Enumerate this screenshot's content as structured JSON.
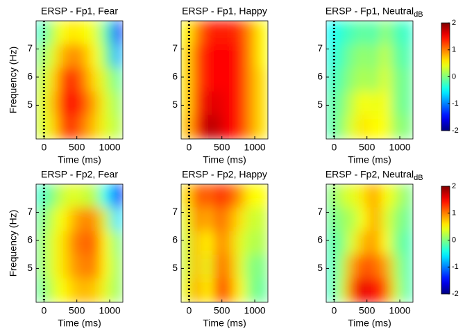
{
  "chart_data": [
    {
      "type": "heatmap",
      "title": "ERSP - Fp1, Fear",
      "xlabel": "Time (ms)",
      "ylabel": "Frequency (Hz)",
      "xlim": [
        -120,
        1200
      ],
      "ylim": [
        3.8,
        8
      ],
      "xticks": [
        0,
        500,
        1000
      ],
      "yticks": [
        5,
        6,
        7
      ],
      "event_line": 0,
      "x": [
        -40,
        125,
        290,
        455,
        620,
        785,
        950,
        1115
      ],
      "y": [
        7.58,
        6.74,
        5.9,
        5.06,
        4.22
      ],
      "z": [
        [
          -0.3,
          0.2,
          0.5,
          0.6,
          0.5,
          0.4,
          -0.2,
          -1.3
        ],
        [
          0,
          0.4,
          0.8,
          1.0,
          0.8,
          0.5,
          0,
          -0.8
        ],
        [
          0.2,
          0.6,
          1.2,
          1.4,
          1.0,
          0.6,
          0.3,
          -0.1
        ],
        [
          0.3,
          0.7,
          1.4,
          1.5,
          1.2,
          0.8,
          0.4,
          0.1
        ],
        [
          0.3,
          0.6,
          1.2,
          1.3,
          1.0,
          0.7,
          0.4,
          0.2
        ]
      ]
    },
    {
      "type": "heatmap",
      "title": "ERSP - Fp1, Happy",
      "xlabel": "Time (ms)",
      "xlim": [
        -120,
        1200
      ],
      "ylim": [
        3.8,
        8
      ],
      "xticks": [
        0,
        500,
        1000
      ],
      "yticks": [
        5,
        6,
        7
      ],
      "event_line": 0,
      "x": [
        -40,
        125,
        290,
        455,
        620,
        785,
        950,
        1115
      ],
      "y": [
        7.58,
        6.74,
        5.9,
        5.06,
        4.22
      ],
      "z": [
        [
          0.5,
          1.0,
          1.4,
          1.4,
          1.4,
          1.3,
          0.9,
          0.5
        ],
        [
          0.6,
          1.2,
          1.5,
          1.5,
          1.5,
          1.4,
          0.9,
          0.5
        ],
        [
          0.6,
          1.2,
          1.5,
          1.5,
          1.5,
          1.4,
          0.9,
          0.6
        ],
        [
          0.6,
          1.3,
          1.6,
          1.6,
          1.5,
          1.4,
          0.9,
          0.6
        ],
        [
          0.7,
          1.4,
          1.8,
          1.7,
          1.5,
          1.4,
          0.9,
          0.6
        ]
      ]
    },
    {
      "type": "heatmap",
      "title": "ERSP - Fp1, Neutral",
      "xlabel": "Time (ms)",
      "xlim": [
        -120,
        1200
      ],
      "ylim": [
        3.8,
        8
      ],
      "xticks": [
        0,
        500,
        1000
      ],
      "yticks": [
        5,
        6,
        7
      ],
      "event_line": 0,
      "x": [
        -40,
        125,
        290,
        455,
        620,
        785,
        950,
        1115
      ],
      "y": [
        7.58,
        6.74,
        5.9,
        5.06,
        4.22
      ],
      "z": [
        [
          -0.5,
          -0.3,
          -0.2,
          -0.1,
          -0.2,
          0.1,
          -0.2,
          -0.3
        ],
        [
          -0.4,
          -0.2,
          0,
          0.1,
          0,
          0.3,
          -0.1,
          -0.2
        ],
        [
          -0.3,
          -0.1,
          0.1,
          0.2,
          0.1,
          0.4,
          0,
          -0.1
        ],
        [
          -0.2,
          0,
          0.3,
          0.5,
          0.4,
          0.5,
          0,
          -0.1
        ],
        [
          -0.2,
          0.1,
          0.4,
          0.6,
          0.5,
          0.5,
          0.1,
          0
        ]
      ],
      "colorbar": {
        "label": "dB",
        "lim": [
          -2,
          2
        ],
        "ticks": [
          -2,
          -1,
          0,
          1,
          2
        ]
      }
    },
    {
      "type": "heatmap",
      "title": "ERSP - Fp2, Fear",
      "xlabel": "Time (ms)",
      "ylabel": "Frequency (Hz)",
      "xlim": [
        -120,
        1200
      ],
      "ylim": [
        3.8,
        8
      ],
      "xticks": [
        0,
        500,
        1000
      ],
      "yticks": [
        5,
        6,
        7
      ],
      "event_line": 0,
      "x": [
        -40,
        125,
        290,
        455,
        620,
        785,
        950,
        1115
      ],
      "y": [
        7.58,
        6.74,
        5.9,
        5.06,
        4.22
      ],
      "z": [
        [
          -0.3,
          0,
          0.3,
          0.4,
          0.3,
          0.2,
          -0.5,
          -1.5
        ],
        [
          -0.1,
          0.3,
          0.5,
          0.8,
          1.0,
          0.9,
          0.3,
          -0.6
        ],
        [
          0,
          0.4,
          0.6,
          1.0,
          1.1,
          1.1,
          0.5,
          0
        ],
        [
          0,
          0.4,
          0.6,
          0.9,
          1.0,
          1.0,
          0.5,
          0.1
        ],
        [
          -0.1,
          0.3,
          0.5,
          0.7,
          0.8,
          0.7,
          0.4,
          0.1
        ]
      ]
    },
    {
      "type": "heatmap",
      "title": "ERSP - Fp2, Happy",
      "xlabel": "Time (ms)",
      "xlim": [
        -120,
        1200
      ],
      "ylim": [
        3.8,
        8
      ],
      "xticks": [
        0,
        500,
        1000
      ],
      "yticks": [
        5,
        6,
        7
      ],
      "event_line": 0,
      "x": [
        -40,
        125,
        290,
        455,
        620,
        785,
        950,
        1115
      ],
      "y": [
        7.58,
        6.74,
        5.9,
        5.06,
        4.22
      ],
      "z": [
        [
          0.6,
          1.2,
          1.1,
          1.3,
          1.2,
          0.9,
          0.5,
          0.5
        ],
        [
          0.4,
          1.0,
          0.8,
          1.1,
          0.9,
          0.6,
          0.3,
          0.3
        ],
        [
          0.3,
          0.8,
          0.5,
          1.0,
          0.8,
          0.4,
          0.2,
          0.2
        ],
        [
          0.3,
          0.8,
          0.4,
          1.1,
          0.9,
          0.4,
          0,
          0
        ],
        [
          0.4,
          0.9,
          0.5,
          1.3,
          1.0,
          0.5,
          0,
          -0.1
        ]
      ]
    },
    {
      "type": "heatmap",
      "title": "ERSP - Fp2, Neutral",
      "xlabel": "Time (ms)",
      "xlim": [
        -120,
        1200
      ],
      "ylim": [
        3.8,
        8
      ],
      "xticks": [
        0,
        500,
        1000
      ],
      "yticks": [
        5,
        6,
        7
      ],
      "event_line": 0,
      "x": [
        -40,
        125,
        290,
        455,
        620,
        785,
        950,
        1115
      ],
      "y": [
        7.58,
        6.74,
        5.9,
        5.06,
        4.22
      ],
      "z": [
        [
          0,
          0.3,
          0.4,
          0.6,
          0.9,
          0.5,
          0.3,
          0
        ],
        [
          -0.1,
          0.1,
          0.2,
          0.5,
          0.9,
          0.4,
          0.1,
          -0.1
        ],
        [
          -0.2,
          0,
          0.4,
          0.8,
          0.9,
          0.5,
          0,
          -0.2
        ],
        [
          -0.3,
          0.2,
          0.9,
          1.2,
          1.1,
          0.9,
          0.2,
          -0.2
        ],
        [
          -0.3,
          0.3,
          1.3,
          1.6,
          1.5,
          1.2,
          0.3,
          -0.2
        ]
      ],
      "colorbar": {
        "label": "dB",
        "lim": [
          -2,
          2
        ],
        "ticks": [
          -2,
          -1,
          0,
          1,
          2
        ]
      }
    }
  ]
}
